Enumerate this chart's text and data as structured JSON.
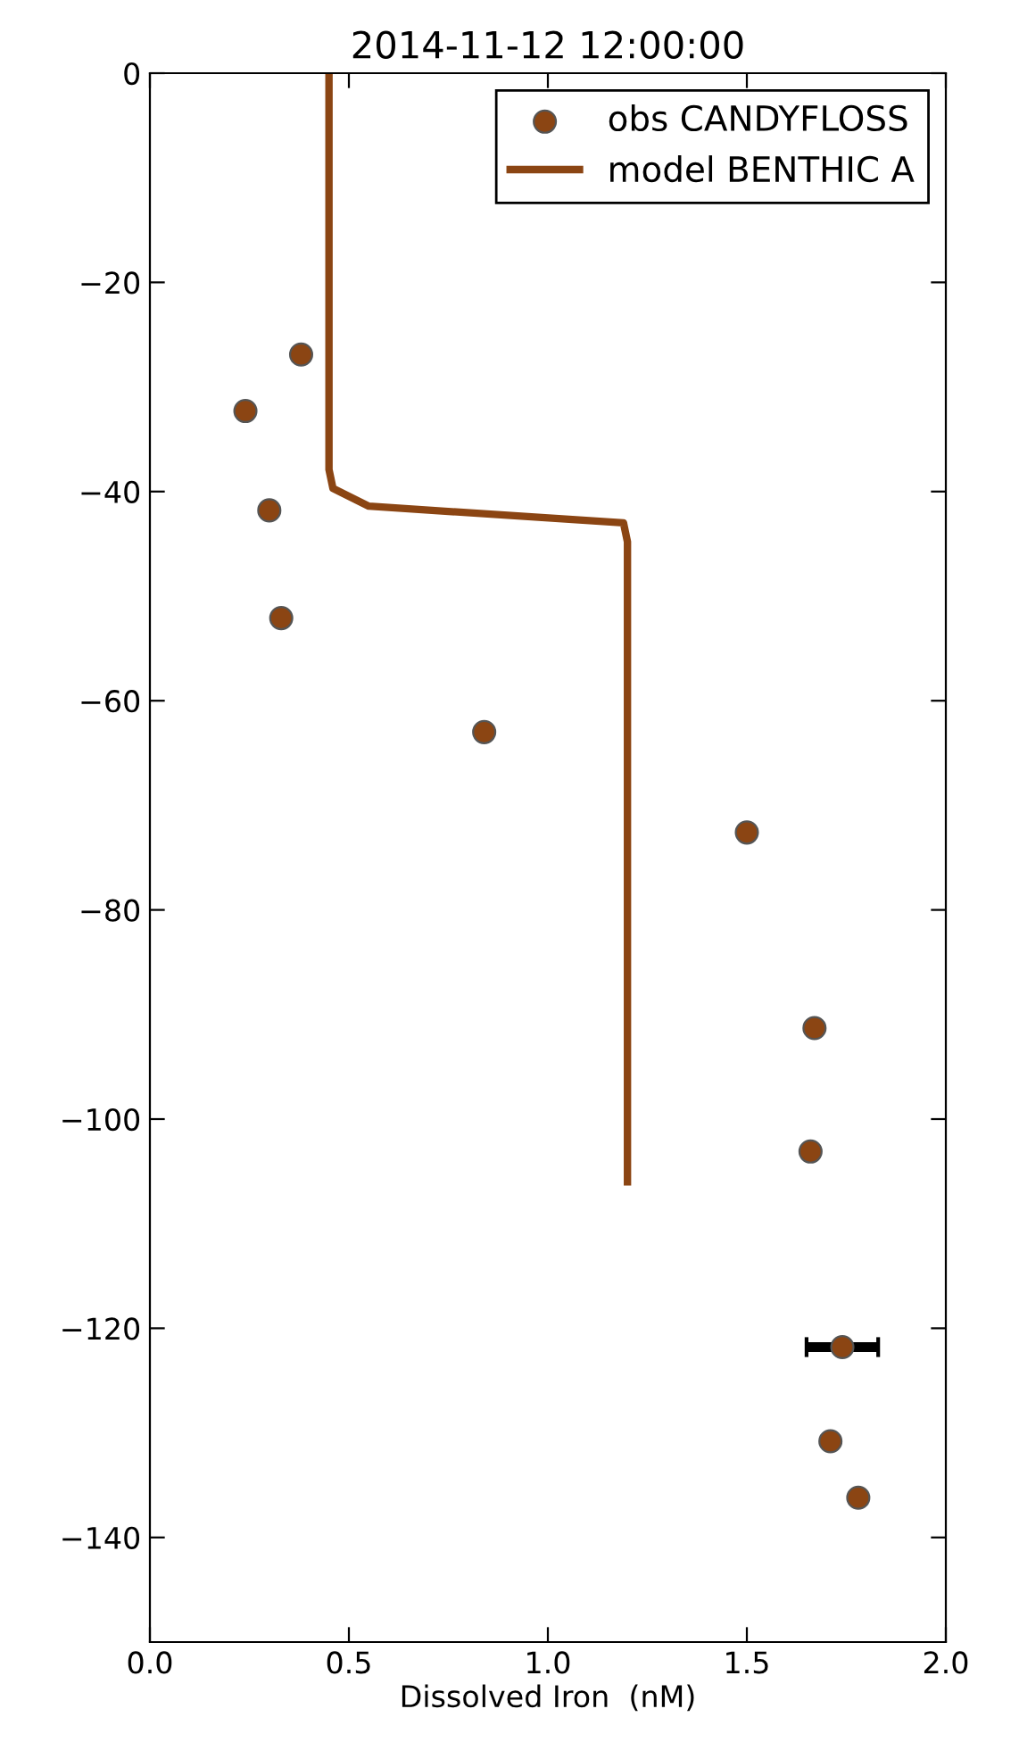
{
  "chart_data": {
    "type": "scatter",
    "title": "2014-11-12 12:00:00",
    "xlabel": "Dissolved Iron  (nM)",
    "xlim": [
      0,
      2.0
    ],
    "ylim": [
      -150,
      0
    ],
    "xticks": [
      {
        "value": 0,
        "label": "0.0"
      },
      {
        "value": 0.5,
        "label": "0.5"
      },
      {
        "value": 1.0,
        "label": "1.0"
      },
      {
        "value": 1.5,
        "label": "1.5"
      },
      {
        "value": 2.0,
        "label": "2.0"
      }
    ],
    "yticks": [
      0,
      {
        "value": -20,
        "label": "−20"
      },
      {
        "value": -40,
        "label": "−40"
      },
      {
        "value": -60,
        "label": "−60"
      },
      {
        "value": -80,
        "label": "−80"
      },
      {
        "value": -100,
        "label": "−100"
      },
      {
        "value": -120,
        "label": "−120"
      },
      {
        "value": -140,
        "label": "−140"
      }
    ],
    "grid": false,
    "legend": "top right",
    "series": [
      {
        "name": "obs CANDYFLOSS",
        "marker": "circle",
        "color": "#8b4513",
        "x": [
          0.38,
          0.24,
          0.3,
          0.33,
          0.84,
          1.5,
          1.67,
          1.66,
          1.74,
          1.71,
          1.78
        ],
        "values": [
          -26.9,
          -32.3,
          -41.8,
          -52.1,
          -63.0,
          -72.6,
          -91.3,
          -103.1,
          -121.8,
          -130.8,
          -136.2
        ],
        "xerrors": [
          null,
          null,
          null,
          null,
          null,
          null,
          null,
          null,
          [
            1.65,
            1.83
          ],
          null,
          null
        ]
      },
      {
        "name": "model BENTHIC A",
        "type": "line",
        "color": "#8b4513",
        "line_style": "solid",
        "x": [
          0.45,
          0.45,
          0.46,
          0.55,
          1.19,
          1.2,
          1.2
        ],
        "values": [
          0,
          -37.9,
          -39.7,
          -41.4,
          -43.0,
          -44.8,
          -106.0
        ]
      }
    ]
  }
}
